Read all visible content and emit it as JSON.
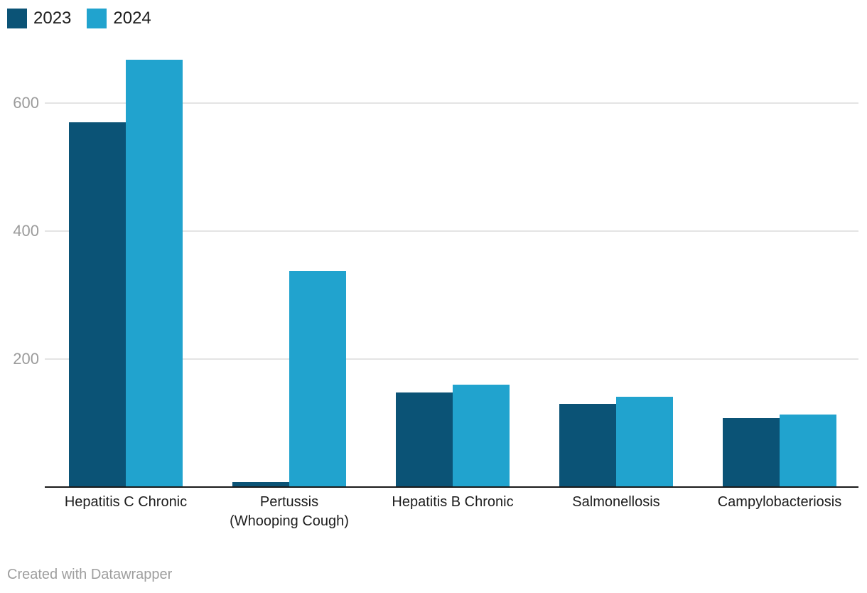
{
  "legend": {
    "items": [
      {
        "label": "2023",
        "color": "#0b5376"
      },
      {
        "label": "2024",
        "color": "#21a3ce"
      }
    ]
  },
  "footer": {
    "text": "Created with Datawrapper"
  },
  "chart_data": {
    "type": "bar",
    "categories": [
      "Hepatitis C Chronic",
      "Pertussis\n(Whooping Cough)",
      "Hepatitis B Chronic",
      "Salmonellosis",
      "Campylobacteriosis"
    ],
    "series": [
      {
        "name": "2023",
        "color": "#0b5376",
        "values": [
          570,
          8,
          148,
          130,
          108
        ]
      },
      {
        "name": "2024",
        "color": "#21a3ce",
        "values": [
          668,
          338,
          160,
          141,
          113
        ]
      }
    ],
    "yticks": [
      200,
      400,
      600
    ],
    "ylim": [
      0,
      700
    ],
    "grid": "horizontal",
    "legend_position": "top-left",
    "colors": {
      "grid": "#e4e4e4",
      "axis_line": "#1a1a1a",
      "tick_label": "#9b9b9b",
      "category_label": "#1d1d1d"
    }
  }
}
